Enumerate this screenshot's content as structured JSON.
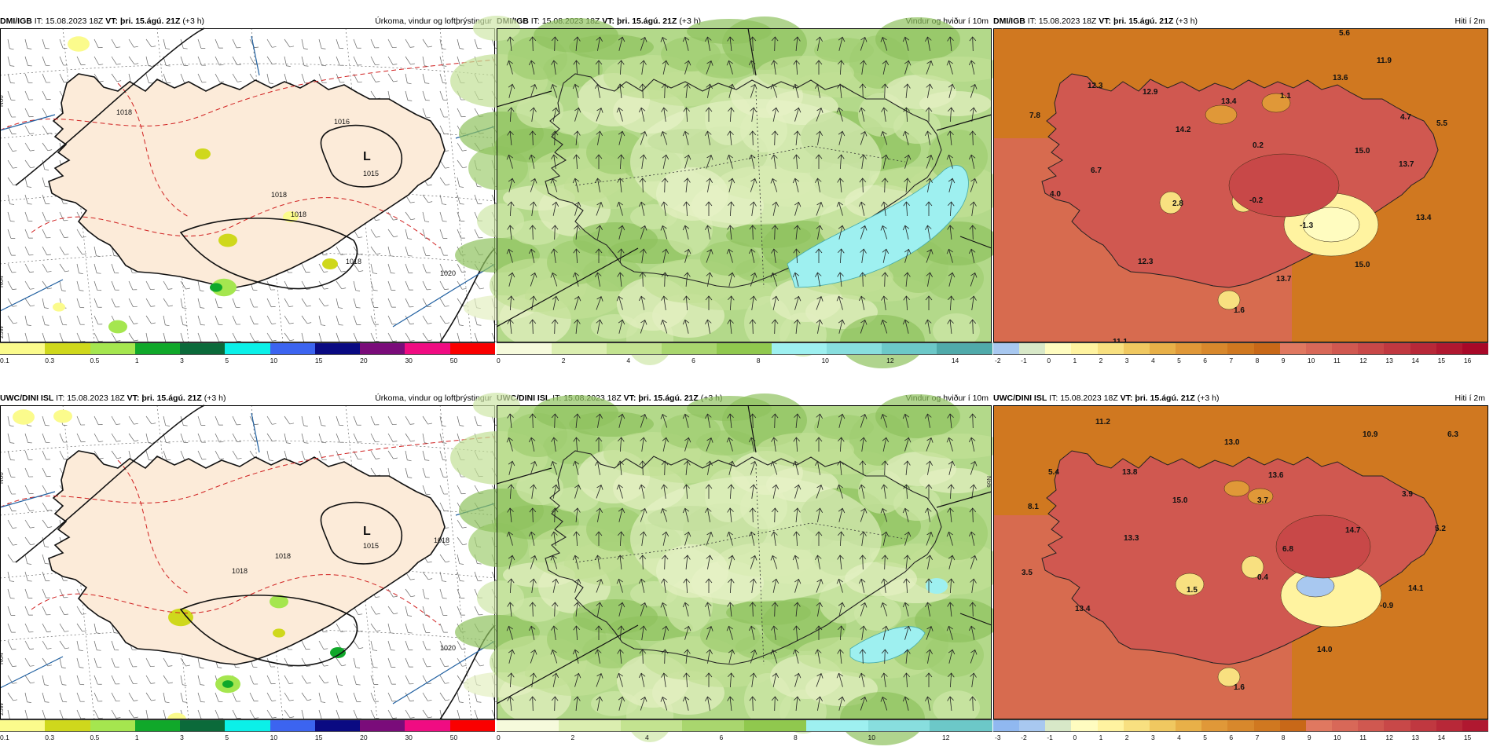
{
  "panels": [
    {
      "model": "DMI/IGB",
      "it_label": "IT:",
      "it_value": "15.08.2023 18Z",
      "vt_label": "VT:",
      "vt_value": "þri. 15.ágú. 21Z",
      "lead": "(+3 h)",
      "product": "Úrkoma, vindur og loftþrýstingur",
      "type": "precip",
      "labels": [
        {
          "t": "1016"
        },
        {
          "t": "L"
        },
        {
          "t": "1015"
        },
        {
          "t": "1018"
        },
        {
          "t": "1018"
        },
        {
          "t": "1020"
        },
        {
          "t": "1018"
        },
        {
          "t": "1018"
        }
      ],
      "edge_labels": [
        "N66",
        "N64",
        "25W"
      ]
    },
    {
      "model": "DMI/IGB",
      "it_label": "IT:",
      "it_value": "15.08.2023 18Z",
      "vt_label": "VT:",
      "vt_value": "þri. 15.ágú. 21Z",
      "lead": "(+3 h)",
      "product": "Vindur og hviður í 10m",
      "type": "wind",
      "labels": [],
      "edge_labels": []
    },
    {
      "model": "DMI/IGB",
      "it_label": "IT:",
      "it_value": "15.08.2023 18Z",
      "vt_label": "VT:",
      "vt_value": "þri. 15.ágú. 21Z",
      "lead": "(+3 h)",
      "product": "Hiti í 2m",
      "type": "temp",
      "labels": [
        "5.6",
        "11.9",
        "12.3",
        "12.9",
        "13.6",
        "7.8",
        "13.4",
        "1.1",
        "4.7",
        "5.5",
        "14.2",
        "0.2",
        "15.0",
        "6.7",
        "13.7",
        "4.0",
        "2.8",
        "-0.2",
        "-1.3",
        "13.4",
        "12.3",
        "15.0",
        "13.7",
        "1.6",
        "11.1"
      ],
      "edge_labels": []
    },
    {
      "model": "UWC/DINI ISL",
      "it_label": "IT:",
      "it_value": "15.08.2023 18Z",
      "vt_label": "VT:",
      "vt_value": "þri. 15.ágú. 21Z",
      "lead": "(+3 h)",
      "product": "Úrkoma, vindur og loftþrýstingur",
      "type": "precip",
      "labels": [
        {
          "t": "L"
        },
        {
          "t": "1015"
        },
        {
          "t": "1018"
        },
        {
          "t": "1018"
        },
        {
          "t": "1020"
        },
        {
          "t": "1018"
        }
      ],
      "edge_labels": [
        "N66",
        "N64",
        "25W"
      ]
    },
    {
      "model": "UWC/DINI ISL",
      "it_label": "IT:",
      "it_value": "15.08.2023 18Z",
      "vt_label": "VT:",
      "vt_value": "þri. 15.ágú. 21Z",
      "lead": "(+3 h)",
      "product": "Vindur og hviður í 10m",
      "type": "wind",
      "labels": [],
      "edge_labels": [
        "N66"
      ]
    },
    {
      "model": "UWC/DINI ISL",
      "it_label": "IT:",
      "it_value": "15.08.2023 18Z",
      "vt_label": "VT:",
      "vt_value": "þri. 15.ágú. 21Z",
      "lead": "(+3 h)",
      "product": "Hiti í 2m",
      "type": "temp",
      "labels": [
        "11.2",
        "13.0",
        "10.9",
        "6.3",
        "5.4",
        "13.8",
        "13.6",
        "15.0",
        "3.7",
        "3.9",
        "8.1",
        "14.7",
        "5.2",
        "13.3",
        "6.8",
        "3.5",
        "1.5",
        "0.4",
        "14.1",
        "13.4",
        "-0.9",
        "14.0",
        "1.6"
      ],
      "edge_labels": []
    }
  ],
  "scales": {
    "precip": {
      "ticks": [
        "0.1",
        "0.3",
        "0.5",
        "1",
        "3",
        "5",
        "10",
        "15",
        "20",
        "30",
        "50"
      ],
      "colors": [
        "#fbfb8c",
        "#cfd81c",
        "#a5e64f",
        "#10a82a",
        "#0b6a3a",
        "#0bf0e8",
        "#3c64f0",
        "#0a0a82",
        "#7a0c7a",
        "#f00c82",
        "#fa0000"
      ]
    },
    "wind_top": {
      "ticks": [
        "0",
        "2",
        "4",
        "6",
        "8",
        "10",
        "12",
        "14"
      ],
      "colors": [
        "#f6fadc",
        "#dbeeb0",
        "#c3e390",
        "#a9d66e",
        "#90c84e",
        "#9ef0f0",
        "#88dede",
        "#6cc8c8",
        "#50aaaa"
      ]
    },
    "wind_bot": {
      "ticks": [
        "0",
        "2",
        "4",
        "6",
        "8",
        "10",
        "12"
      ],
      "colors": [
        "#f6fadc",
        "#dbeeb0",
        "#c3e390",
        "#a9d66e",
        "#90c84e",
        "#9ef0f0",
        "#88dede",
        "#6cc8c8"
      ]
    },
    "temp_top": {
      "ticks": [
        "-2",
        "-1",
        "0",
        "1",
        "2",
        "3",
        "4",
        "5",
        "6",
        "7",
        "8",
        "9",
        "10",
        "11",
        "12",
        "13",
        "14",
        "15",
        "16"
      ],
      "colors": [
        "#a8c8f0",
        "#d8e8c8",
        "#fffcc0",
        "#fff3a0",
        "#f8e080",
        "#f0c860",
        "#e8b048",
        "#e09838",
        "#d8882c",
        "#d07820",
        "#c86818",
        "#e07860",
        "#d86858",
        "#d05850",
        "#c84848",
        "#c03840",
        "#b82838",
        "#b01830",
        "#a80828"
      ]
    },
    "temp_bot": {
      "ticks": [
        "-3",
        "-2",
        "-1",
        "0",
        "1",
        "2",
        "3",
        "4",
        "5",
        "6",
        "7",
        "8",
        "9",
        "10",
        "11",
        "12",
        "13",
        "14",
        "15"
      ],
      "colors": [
        "#90b8f0",
        "#a8c8f0",
        "#d8e8c8",
        "#fffcc0",
        "#fff3a0",
        "#f8e080",
        "#f0c860",
        "#e8b048",
        "#e09838",
        "#d8882c",
        "#d07820",
        "#c86818",
        "#e07860",
        "#d86858",
        "#d05850",
        "#c84848",
        "#c03840",
        "#b82838",
        "#b01830"
      ]
    }
  }
}
